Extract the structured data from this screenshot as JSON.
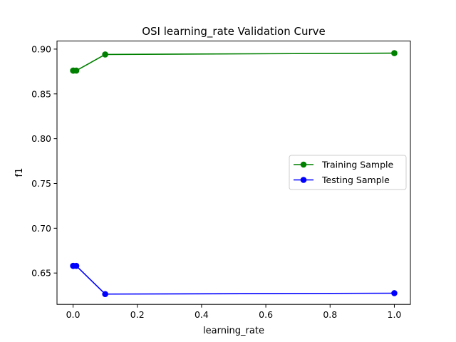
{
  "chart_data": {
    "type": "line",
    "title": "OSI learning_rate Validation Curve",
    "xlabel": "learning_rate",
    "ylabel": "f1",
    "xlim": [
      -0.05,
      1.05
    ],
    "ylim": [
      0.615,
      0.909
    ],
    "xticks": [
      0.0,
      0.2,
      0.4,
      0.6,
      0.8,
      1.0
    ],
    "xtick_labels": [
      "0.0",
      "0.2",
      "0.4",
      "0.6",
      "0.8",
      "1.0"
    ],
    "yticks": [
      0.65,
      0.7,
      0.75,
      0.8,
      0.85,
      0.9
    ],
    "ytick_labels": [
      "0.65",
      "0.70",
      "0.75",
      "0.80",
      "0.85",
      "0.90"
    ],
    "grid": false,
    "legend_position": "center-right",
    "series": [
      {
        "name": "Training Sample",
        "color": "#008000",
        "marker": "circle",
        "x": [
          0.0001,
          0.001,
          0.01,
          0.1,
          1.0
        ],
        "y": [
          0.876,
          0.876,
          0.876,
          0.894,
          0.8955
        ]
      },
      {
        "name": "Testing Sample",
        "color": "#0000ff",
        "marker": "circle",
        "x": [
          0.0001,
          0.001,
          0.01,
          0.1,
          1.0
        ],
        "y": [
          0.658,
          0.658,
          0.658,
          0.6265,
          0.6275
        ]
      }
    ]
  }
}
